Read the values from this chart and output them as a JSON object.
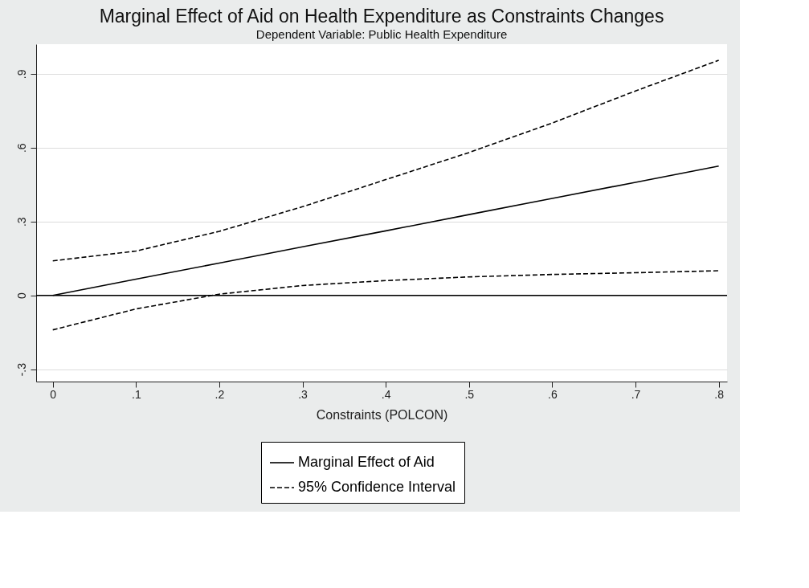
{
  "chart_data": {
    "type": "line",
    "title": "Marginal Effect of Aid on Health Expenditure as Constraints Changes",
    "subtitle": "Dependent Variable: Public Health Expenditure",
    "xlabel": "Constraints (POLCON)",
    "x": [
      0,
      0.1,
      0.2,
      0.3,
      0.4,
      0.5,
      0.6,
      0.7,
      0.8
    ],
    "series": [
      {
        "name": "Marginal Effect of Aid",
        "color": "#000000",
        "line_style": "solid",
        "values": [
          0,
          0.066,
          0.131,
          0.197,
          0.262,
          0.328,
          0.394,
          0.459,
          0.525
        ]
      },
      {
        "name": "95% Confidence Interval",
        "color": "#000000",
        "line_style": "dashed",
        "values": [
          0.14,
          0.18,
          0.26,
          0.36,
          0.47,
          0.58,
          0.7,
          0.83,
          0.955
        ]
      },
      {
        "color": "#000000",
        "line_style": "dashed",
        "values": [
          -0.14,
          -0.055,
          0.005,
          0.04,
          0.06,
          0.075,
          0.085,
          0.092,
          0.1
        ]
      }
    ],
    "xlim": [
      -0.02,
      0.81
    ],
    "ylim": [
      -0.35,
      1.02
    ],
    "xticks": [
      0,
      {
        "value": 0.1,
        "label": ".1"
      },
      {
        "value": 0.2,
        "label": ".2"
      },
      {
        "value": 0.3,
        "label": ".3"
      },
      {
        "value": 0.4,
        "label": ".4"
      },
      {
        "value": 0.5,
        "label": ".5"
      },
      {
        "value": 0.6,
        "label": ".6"
      },
      {
        "value": 0.7,
        "label": ".7"
      },
      {
        "value": 0.8,
        "label": ".8"
      }
    ],
    "yticks": [
      {
        "value": -0.3,
        "label": "-.3"
      },
      0,
      {
        "value": 0.3,
        "label": ".3"
      },
      {
        "value": 0.6,
        "label": ".6"
      },
      {
        "value": 0.9,
        "label": ".9"
      }
    ],
    "ref_lines": [
      {
        "axis": "y",
        "value": 0,
        "color": "#000000",
        "line_style": "solid"
      }
    ],
    "grid": "y",
    "legend": "bottom",
    "marker": "none"
  }
}
